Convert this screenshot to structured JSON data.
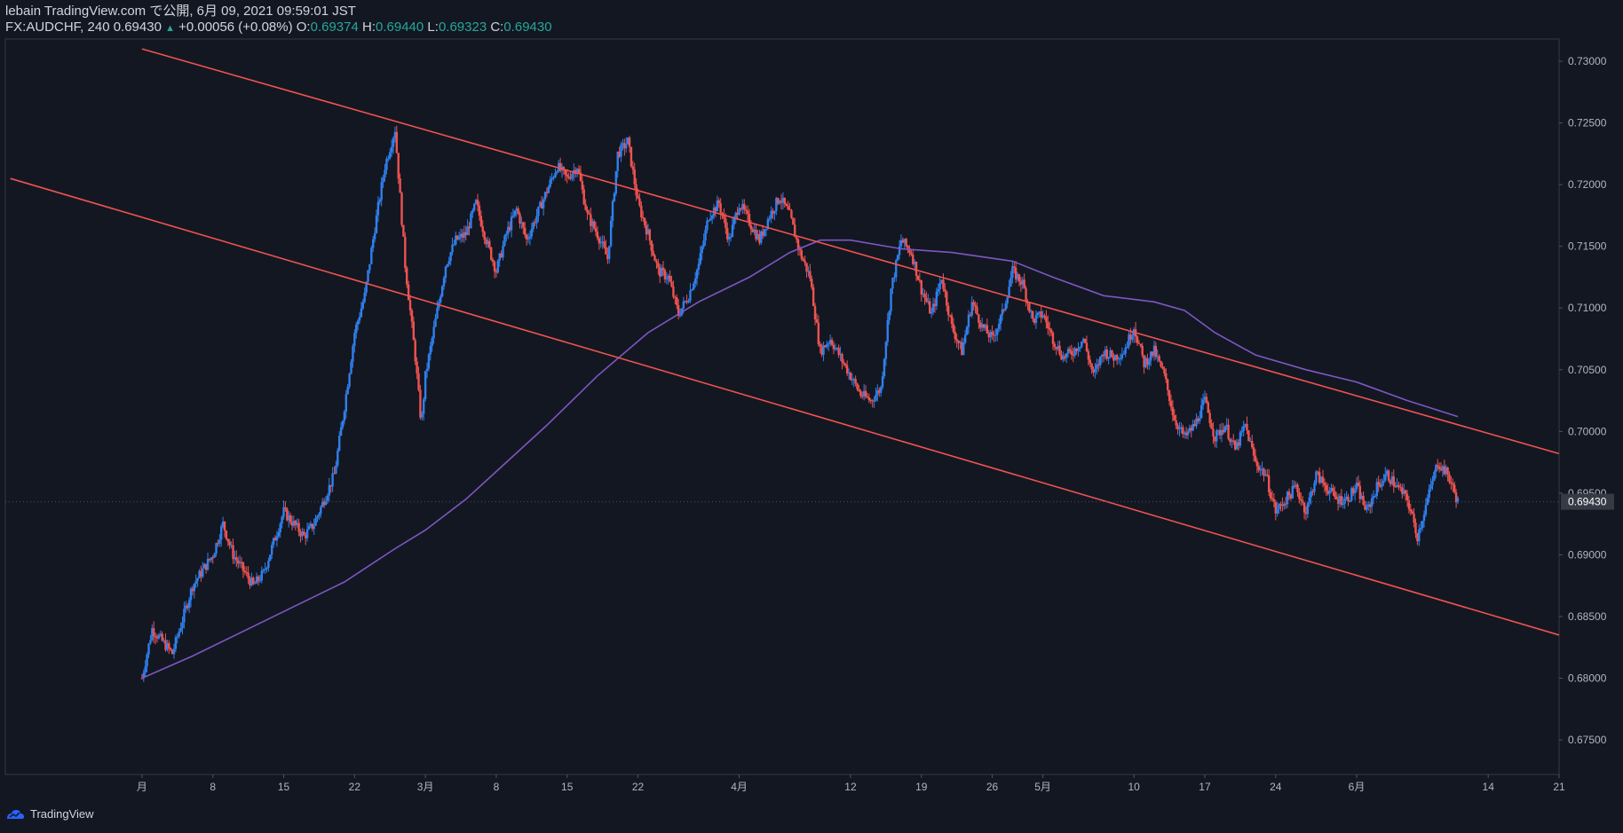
{
  "header": {
    "line1": "lebain TradingView.com で公開, 6月 09, 2021 09:59:01 JST",
    "symbol_prefix": "FX:AUDCHF, 240 0.69430",
    "change": "+0.00056 (+0.08%)",
    "o_label": "O:",
    "o_value": "0.69374",
    "h_label": "H:",
    "h_value": "0.69440",
    "l_label": "L:",
    "l_value": "0.69323",
    "c_label": "C:",
    "c_value": "0.69430"
  },
  "footer": {
    "brand": "TradingView"
  },
  "colors": {
    "background": "#131722",
    "up": "#2f80ed",
    "down": "#ef5350",
    "ma": "#7e57c2",
    "trendline": "#ef5350",
    "axis_text": "#b2b5be"
  },
  "chart_data": {
    "type": "candlestick",
    "y_ticks": [
      "0.73000",
      "0.72500",
      "0.72000",
      "0.71500",
      "0.71000",
      "0.70500",
      "0.70000",
      "0.69500",
      "0.69000",
      "0.68500",
      "0.68000",
      "0.67500"
    ],
    "ylim": [
      0.6722,
      0.7318
    ],
    "last_price_label": "0.69430",
    "x_ticks": [
      {
        "label": "月",
        "day": 0
      },
      {
        "label": "8",
        "day": 7
      },
      {
        "label": "15",
        "day": 14
      },
      {
        "label": "22",
        "day": 21
      },
      {
        "label": "3月",
        "day": 28
      },
      {
        "label": "8",
        "day": 35
      },
      {
        "label": "15",
        "day": 42
      },
      {
        "label": "22",
        "day": 49
      },
      {
        "label": "4月",
        "day": 59
      },
      {
        "label": "12",
        "day": 70
      },
      {
        "label": "19",
        "day": 77
      },
      {
        "label": "26",
        "day": 84
      },
      {
        "label": "5月",
        "day": 89
      },
      {
        "label": "10",
        "day": 98
      },
      {
        "label": "17",
        "day": 105
      },
      {
        "label": "24",
        "day": 112
      },
      {
        "label": "6月",
        "day": 120
      },
      {
        "label": "14",
        "day": 133
      },
      {
        "label": "21",
        "day": 140
      }
    ],
    "price_path": [
      [
        0,
        0.68
      ],
      [
        1,
        0.684
      ],
      [
        3,
        0.682
      ],
      [
        5,
        0.6875
      ],
      [
        7,
        0.69
      ],
      [
        8,
        0.6925
      ],
      [
        9,
        0.69
      ],
      [
        11,
        0.6875
      ],
      [
        12,
        0.6885
      ],
      [
        13,
        0.691
      ],
      [
        14,
        0.6935
      ],
      [
        16,
        0.6915
      ],
      [
        17,
        0.6925
      ],
      [
        18,
        0.6945
      ],
      [
        19,
        0.6965
      ],
      [
        20,
        0.702
      ],
      [
        21,
        0.708
      ],
      [
        22,
        0.711
      ],
      [
        23,
        0.7165
      ],
      [
        24,
        0.7215
      ],
      [
        25,
        0.7245
      ],
      [
        26,
        0.7135
      ],
      [
        27,
        0.706
      ],
      [
        27.6,
        0.7005
      ],
      [
        28,
        0.7045
      ],
      [
        29,
        0.709
      ],
      [
        30,
        0.7135
      ],
      [
        31,
        0.7155
      ],
      [
        32,
        0.716
      ],
      [
        33,
        0.7185
      ],
      [
        34,
        0.7155
      ],
      [
        35,
        0.713
      ],
      [
        36,
        0.716
      ],
      [
        37,
        0.718
      ],
      [
        38,
        0.7155
      ],
      [
        39,
        0.7175
      ],
      [
        40,
        0.7195
      ],
      [
        41,
        0.7215
      ],
      [
        42,
        0.7205
      ],
      [
        43,
        0.7215
      ],
      [
        44,
        0.7175
      ],
      [
        45,
        0.716
      ],
      [
        46,
        0.714
      ],
      [
        47,
        0.7225
      ],
      [
        48,
        0.7235
      ],
      [
        49,
        0.7185
      ],
      [
        50,
        0.716
      ],
      [
        51,
        0.713
      ],
      [
        52,
        0.7125
      ],
      [
        53,
        0.7095
      ],
      [
        54,
        0.711
      ],
      [
        55,
        0.7135
      ],
      [
        56,
        0.7175
      ],
      [
        57,
        0.7185
      ],
      [
        58,
        0.7155
      ],
      [
        59,
        0.7185
      ],
      [
        60,
        0.717
      ],
      [
        61,
        0.7155
      ],
      [
        62,
        0.7175
      ],
      [
        63,
        0.719
      ],
      [
        64,
        0.7175
      ],
      [
        65,
        0.7145
      ],
      [
        66,
        0.7125
      ],
      [
        67,
        0.7065
      ],
      [
        68,
        0.7075
      ],
      [
        69,
        0.706
      ],
      [
        70,
        0.7045
      ],
      [
        71,
        0.703
      ],
      [
        72,
        0.7025
      ],
      [
        73,
        0.7035
      ],
      [
        74,
        0.7115
      ],
      [
        75,
        0.7155
      ],
      [
        76,
        0.7145
      ],
      [
        77,
        0.7115
      ],
      [
        78,
        0.7095
      ],
      [
        79,
        0.7125
      ],
      [
        80,
        0.7085
      ],
      [
        81,
        0.7065
      ],
      [
        82,
        0.7105
      ],
      [
        83,
        0.7085
      ],
      [
        84,
        0.7075
      ],
      [
        85,
        0.7095
      ],
      [
        86,
        0.713
      ],
      [
        87,
        0.712
      ],
      [
        88,
        0.709
      ],
      [
        89,
        0.7095
      ],
      [
        90,
        0.7075
      ],
      [
        91,
        0.706
      ],
      [
        92,
        0.7065
      ],
      [
        93,
        0.7075
      ],
      [
        94,
        0.7045
      ],
      [
        95,
        0.7065
      ],
      [
        96,
        0.706
      ],
      [
        97,
        0.7065
      ],
      [
        98,
        0.7085
      ],
      [
        99,
        0.7055
      ],
      [
        100,
        0.7065
      ],
      [
        101,
        0.7045
      ],
      [
        102,
        0.701
      ],
      [
        103,
        0.6995
      ],
      [
        104,
        0.7005
      ],
      [
        105,
        0.7025
      ],
      [
        106,
        0.6995
      ],
      [
        107,
        0.7005
      ],
      [
        108,
        0.6985
      ],
      [
        109,
        0.7005
      ],
      [
        110,
        0.6975
      ],
      [
        111,
        0.6965
      ],
      [
        112,
        0.6935
      ],
      [
        113,
        0.6945
      ],
      [
        114,
        0.6955
      ],
      [
        115,
        0.6935
      ],
      [
        116,
        0.6965
      ],
      [
        117,
        0.6955
      ],
      [
        118,
        0.6945
      ],
      [
        119,
        0.6945
      ],
      [
        120,
        0.6955
      ],
      [
        121,
        0.6935
      ],
      [
        122,
        0.6955
      ],
      [
        123,
        0.6965
      ],
      [
        124,
        0.6955
      ],
      [
        125,
        0.6945
      ],
      [
        126,
        0.6915
      ],
      [
        127,
        0.6945
      ],
      [
        128,
        0.6975
      ],
      [
        129,
        0.6965
      ],
      [
        130,
        0.6943
      ]
    ],
    "moving_average": [
      [
        0,
        0.68
      ],
      [
        5,
        0.6818
      ],
      [
        10,
        0.6838
      ],
      [
        15,
        0.6858
      ],
      [
        20,
        0.6878
      ],
      [
        25,
        0.6905
      ],
      [
        28,
        0.692
      ],
      [
        32,
        0.6945
      ],
      [
        36,
        0.6975
      ],
      [
        40,
        0.7005
      ],
      [
        45,
        0.7045
      ],
      [
        50,
        0.708
      ],
      [
        55,
        0.7105
      ],
      [
        60,
        0.7125
      ],
      [
        64,
        0.7145
      ],
      [
        67,
        0.7155
      ],
      [
        70,
        0.7155
      ],
      [
        75,
        0.7148
      ],
      [
        80,
        0.7145
      ],
      [
        86,
        0.7138
      ],
      [
        90,
        0.7125
      ],
      [
        95,
        0.711
      ],
      [
        100,
        0.7105
      ],
      [
        103,
        0.7098
      ],
      [
        106,
        0.708
      ],
      [
        110,
        0.7062
      ],
      [
        115,
        0.705
      ],
      [
        120,
        0.704
      ],
      [
        125,
        0.7025
      ],
      [
        130,
        0.7012
      ]
    ],
    "trendlines": [
      {
        "points": [
          [
            0,
            0.731
          ],
          [
            140,
            0.6982
          ]
        ]
      },
      {
        "points": [
          [
            -13,
            0.7205
          ],
          [
            140,
            0.6835
          ]
        ]
      }
    ],
    "x_domain": [
      -13.5,
      140
    ]
  }
}
